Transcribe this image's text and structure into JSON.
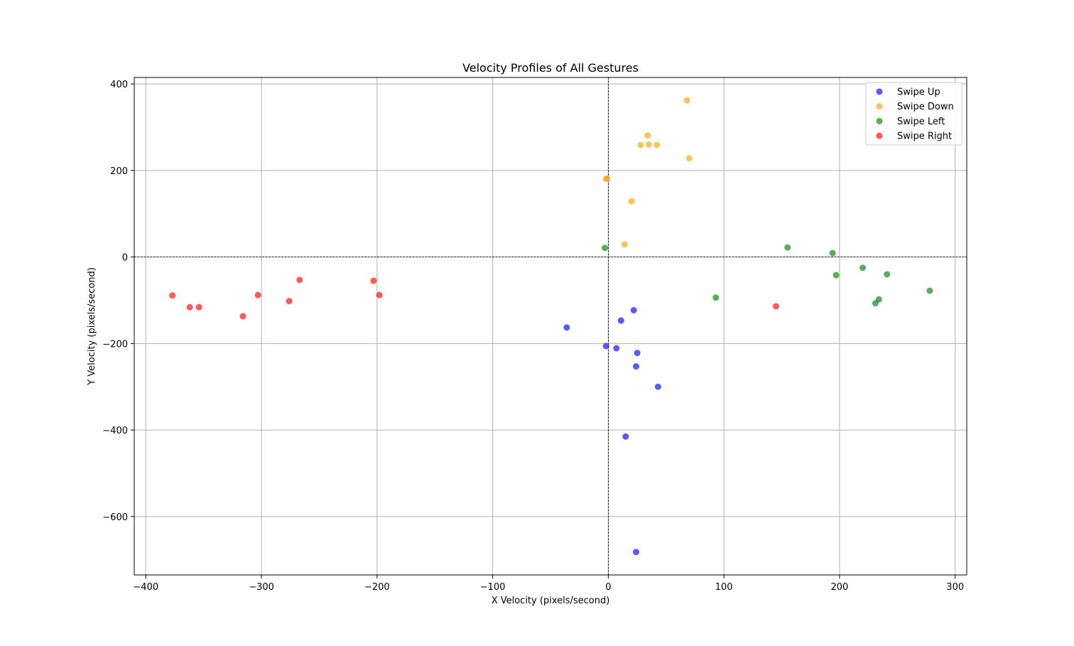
{
  "chart_data": {
    "type": "scatter",
    "title": "Velocity Profiles of All Gestures",
    "xlabel": "X Velocity (pixels/second)",
    "ylabel": "Y Velocity (pixels/second)",
    "xlim": [
      -410,
      310
    ],
    "ylim": [
      -735,
      415
    ],
    "xticks": [
      -400,
      -300,
      -200,
      -100,
      0,
      100,
      200,
      300
    ],
    "yticks": [
      400,
      200,
      0,
      -200,
      -400,
      -600
    ],
    "grid": true,
    "zero_lines": true,
    "legend_position": "top-right",
    "series": [
      {
        "name": "Swipe Up",
        "color": "#0000ff",
        "points": [
          [
            -36,
            -163
          ],
          [
            -2,
            -206
          ],
          [
            7,
            -211
          ],
          [
            11,
            -147
          ],
          [
            22,
            -123
          ],
          [
            25,
            -222
          ],
          [
            24,
            -253
          ],
          [
            43,
            -300
          ],
          [
            15,
            -415
          ],
          [
            24,
            -682
          ]
        ]
      },
      {
        "name": "Swipe Down",
        "color": "#ffa500",
        "points": [
          [
            68,
            362
          ],
          [
            34,
            281
          ],
          [
            28,
            259
          ],
          [
            35,
            260
          ],
          [
            42,
            259
          ],
          [
            70,
            228
          ],
          [
            -2,
            181
          ],
          [
            -1,
            181
          ],
          [
            20,
            129
          ],
          [
            14,
            29
          ]
        ]
      },
      {
        "name": "Swipe Left",
        "color": "#008000",
        "points": [
          [
            -3,
            21
          ],
          [
            155,
            22
          ],
          [
            194,
            9
          ],
          [
            220,
            -25
          ],
          [
            197,
            -42
          ],
          [
            241,
            -40
          ],
          [
            278,
            -78
          ],
          [
            93,
            -94
          ],
          [
            234,
            -98
          ],
          [
            231,
            -107
          ]
        ]
      },
      {
        "name": "Swipe Right",
        "color": "#ff0000",
        "points": [
          [
            -377,
            -89
          ],
          [
            -362,
            -116
          ],
          [
            -354,
            -116
          ],
          [
            -303,
            -88
          ],
          [
            -316,
            -137
          ],
          [
            -276,
            -102
          ],
          [
            -267,
            -53
          ],
          [
            -203,
            -55
          ],
          [
            -198,
            -88
          ],
          [
            145,
            -114
          ]
        ]
      }
    ]
  }
}
